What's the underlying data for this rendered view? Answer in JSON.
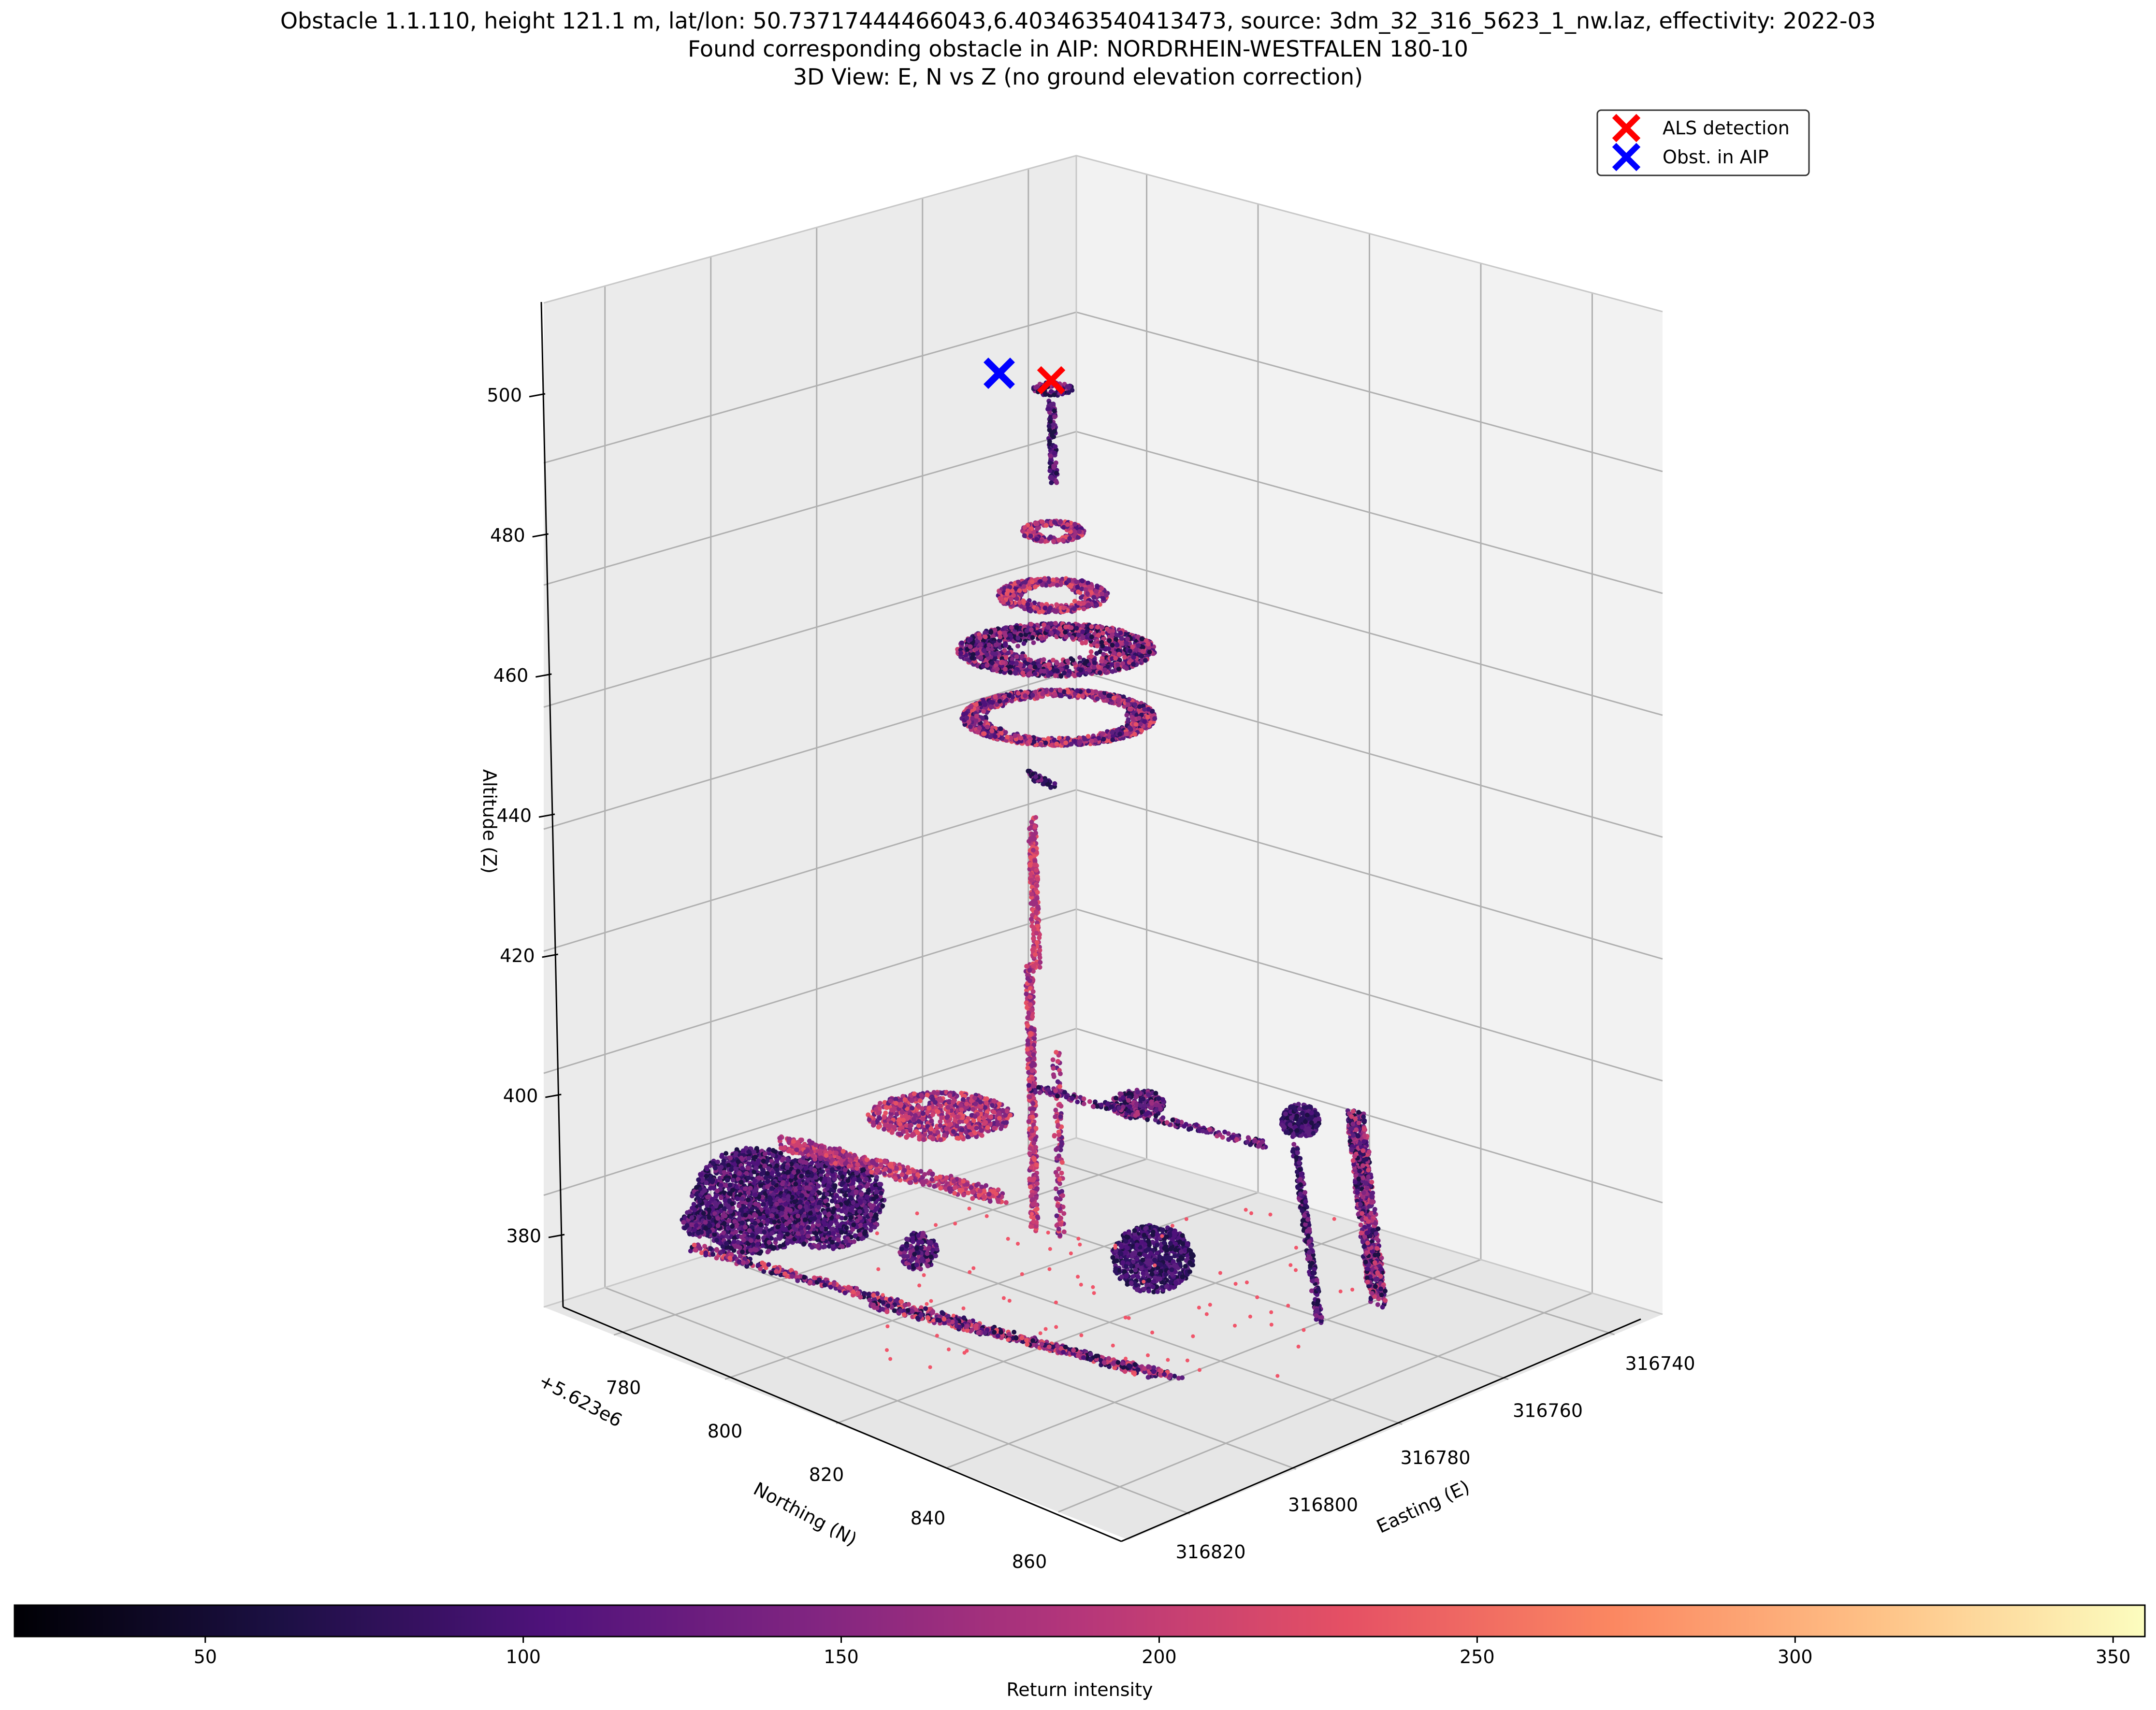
{
  "chart_data": {
    "type": "scatter",
    "title_lines": [
      "Obstacle 1.1.110, height 121.1 m, lat/lon: 50.73717444466043,6.403463540413473, source: 3dm_32_316_5623_1_nw.laz, effectivity: 2022-03",
      "Found corresponding obstacle in AIP: NORDRHEIN-WESTFALEN 180-10",
      "3D View: E, N vs Z (no ground elevation correction)"
    ],
    "projection": "3d",
    "x_axis": {
      "label": "Easting (E)",
      "ticks": [
        316740,
        316760,
        316780,
        316800,
        316820
      ],
      "tick_labels": [
        "316740",
        "316760",
        "316780",
        "316800",
        "316820"
      ]
    },
    "y_axis": {
      "label": "Northing (N)",
      "offset_text": "+5.623e6",
      "ticks": [
        780,
        800,
        820,
        840,
        860
      ],
      "tick_labels": [
        "780",
        "800",
        "820",
        "840",
        "860"
      ]
    },
    "z_axis": {
      "label": "Altitude (Z)",
      "ticks": [
        380,
        400,
        420,
        440,
        460,
        480,
        500
      ],
      "tick_labels": [
        "380",
        "400",
        "420",
        "440",
        "460",
        "480",
        "500"
      ]
    },
    "grid": true,
    "legend": {
      "position": "top-right",
      "entries": [
        {
          "label": "ALS detection",
          "marker": "x",
          "color": "#ff0000"
        },
        {
          "label": "Obst. in AIP",
          "marker": "x",
          "color": "#0000ff"
        }
      ]
    },
    "markers": [
      {
        "name": "ALS detection",
        "altitude": 501.1
      },
      {
        "name": "Obst. in AIP",
        "altitude": 502
      }
    ],
    "colorbar": {
      "label": "Return intensity",
      "colormap": "magma",
      "range": [
        20,
        355
      ],
      "ticks": [
        50,
        100,
        150,
        200,
        250,
        300,
        350
      ],
      "tick_labels": [
        "50",
        "100",
        "150",
        "200",
        "250",
        "300",
        "350"
      ]
    },
    "point_cloud_features": [
      {
        "feature": "antenna tip disk",
        "altitude": 500
      },
      {
        "feature": "small ring",
        "altitude": 482
      },
      {
        "feature": "platform ring",
        "altitude": 473
      },
      {
        "feature": "large platform ring",
        "altitude": 465
      },
      {
        "feature": "lower ring",
        "altitude": 457
      },
      {
        "feature": "tower shaft",
        "altitude_range": [
          386,
          445
        ]
      }
    ]
  }
}
